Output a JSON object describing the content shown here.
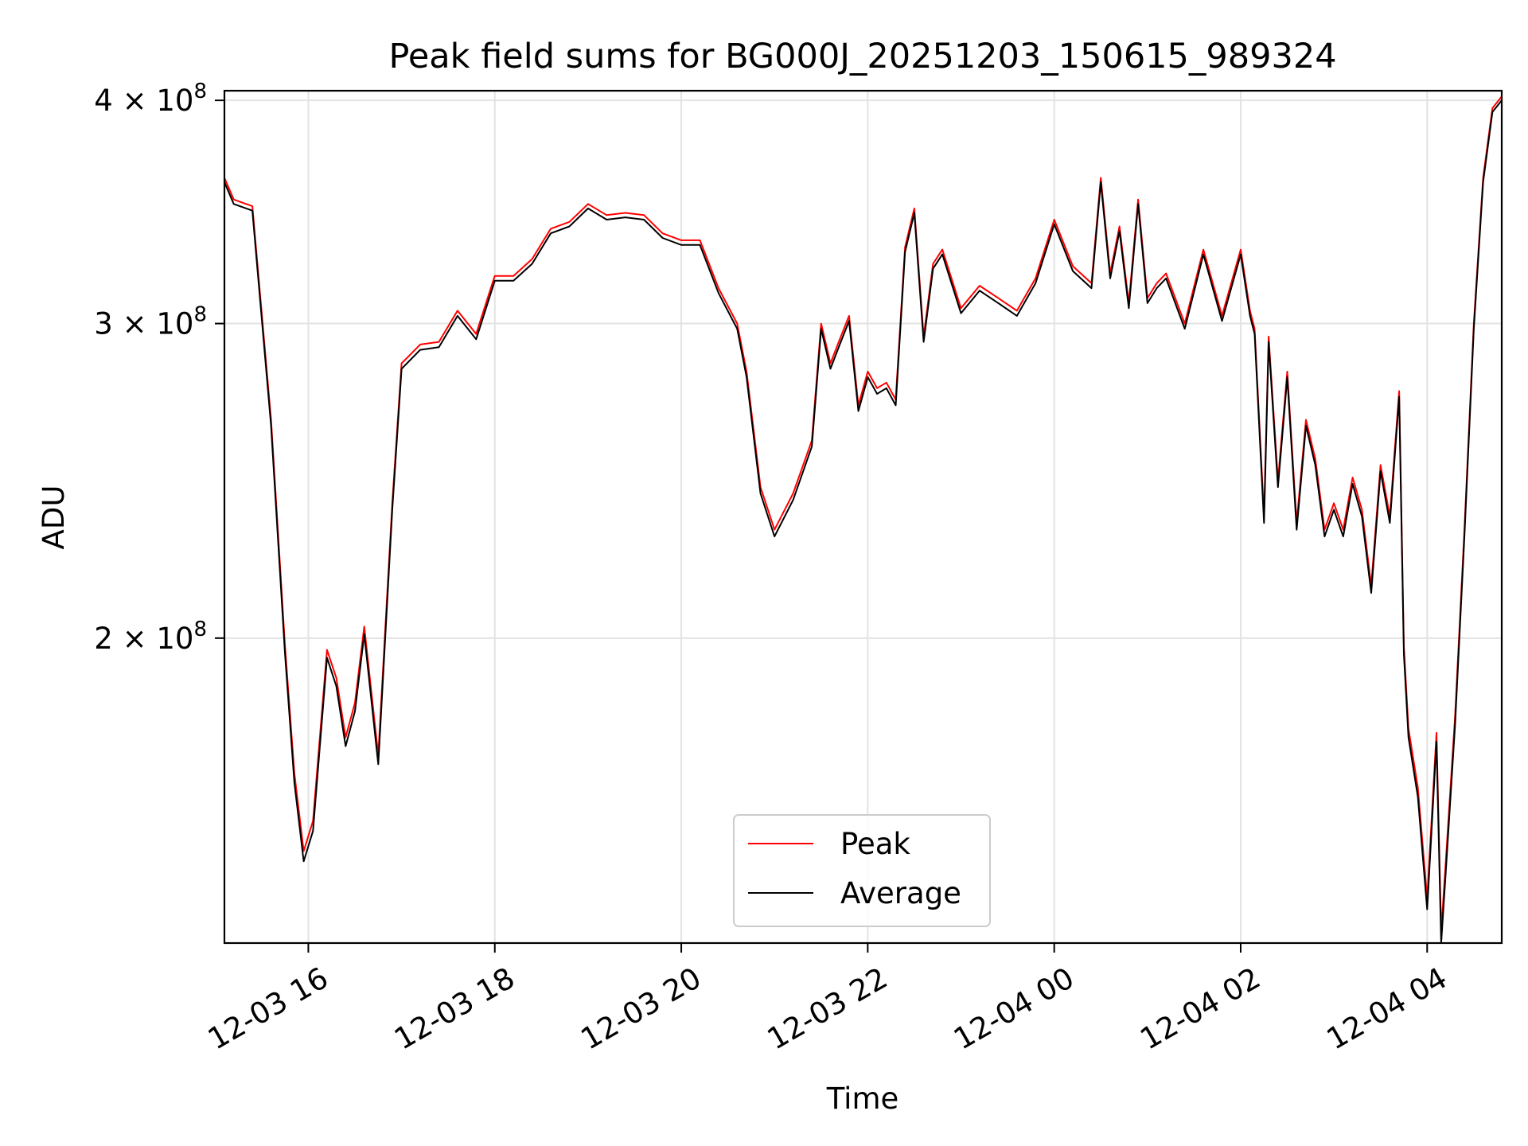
{
  "chart_data": {
    "type": "line",
    "title": "Peak field sums for BG000J_20251203_150615_989324",
    "xlabel": "Time",
    "ylabel": "ADU",
    "y_scale": "log",
    "grid": true,
    "legend_position": "lower center",
    "xlim_hours": [
      15.1,
      28.8
    ],
    "ylim": [
      135000000,
      405000000
    ],
    "x_ticks": [
      {
        "label": "12-03 16",
        "hour": 16
      },
      {
        "label": "12-03 18",
        "hour": 18
      },
      {
        "label": "12-03 20",
        "hour": 20
      },
      {
        "label": "12-03 22",
        "hour": 22
      },
      {
        "label": "12-04 00",
        "hour": 24
      },
      {
        "label": "12-04 02",
        "hour": 26
      },
      {
        "label": "12-04 04",
        "hour": 28
      }
    ],
    "y_ticks": [
      {
        "value": 200000000,
        "mant": "2",
        "exp": "8"
      },
      {
        "value": 300000000,
        "mant": "3",
        "exp": "8"
      },
      {
        "value": 400000000,
        "mant": "4",
        "exp": "8"
      }
    ],
    "x_hours": [
      15.1,
      15.2,
      15.4,
      15.6,
      15.75,
      15.85,
      15.95,
      16.05,
      16.2,
      16.3,
      16.4,
      16.5,
      16.6,
      16.75,
      16.9,
      17.0,
      17.2,
      17.4,
      17.6,
      17.8,
      18.0,
      18.2,
      18.4,
      18.6,
      18.8,
      19.0,
      19.2,
      19.4,
      19.6,
      19.8,
      20.0,
      20.2,
      20.4,
      20.6,
      20.7,
      20.85,
      21.0,
      21.2,
      21.4,
      21.5,
      21.6,
      21.7,
      21.8,
      21.9,
      22.0,
      22.1,
      22.2,
      22.3,
      22.4,
      22.5,
      22.6,
      22.7,
      22.8,
      23.0,
      23.2,
      23.4,
      23.6,
      23.8,
      24.0,
      24.2,
      24.4,
      24.5,
      24.6,
      24.7,
      24.8,
      24.9,
      25.0,
      25.1,
      25.2,
      25.4,
      25.6,
      25.8,
      26.0,
      26.1,
      26.15,
      26.25,
      26.3,
      26.4,
      26.5,
      26.6,
      26.7,
      26.8,
      26.9,
      27.0,
      27.1,
      27.2,
      27.3,
      27.4,
      27.5,
      27.6,
      27.7,
      27.75,
      27.8,
      27.9,
      28.0,
      28.1,
      28.15,
      28.2,
      28.3,
      28.4,
      28.5,
      28.6,
      28.7,
      28.8
    ],
    "series": [
      {
        "name": "Peak",
        "color": "#ff0000",
        "values": [
          362,
          352,
          349,
          265,
          198,
          168,
          152,
          158,
          197,
          190,
          176,
          184,
          203,
          172,
          238,
          285,
          292,
          293,
          305,
          296,
          319,
          319,
          326,
          339,
          342,
          350,
          345,
          346,
          345,
          337,
          334,
          334,
          314,
          300,
          282,
          243,
          230,
          241,
          258,
          300,
          285,
          294,
          303,
          270,
          282,
          276,
          278,
          272,
          331,
          348,
          295,
          324,
          330,
          306,
          315,
          310,
          305,
          318,
          343,
          323,
          316,
          362,
          320,
          340,
          308,
          352,
          310,
          316,
          320,
          300,
          330,
          303,
          330,
          305,
          298,
          234,
          295,
          245,
          282,
          232,
          265,
          252,
          230,
          238,
          230,
          246,
          236,
          214,
          250,
          234,
          275,
          198,
          178,
          165,
          143,
          177,
          137,
          150,
          181,
          230,
          300,
          362,
          396,
          402
        ]
      },
      {
        "name": "Average",
        "color": "#000000",
        "values": [
          360,
          350,
          347,
          263,
          196,
          166,
          150,
          156,
          195,
          188,
          174,
          182,
          201,
          170,
          236,
          283,
          290,
          291,
          303,
          294,
          317,
          317,
          324,
          337,
          340,
          348,
          343,
          344,
          343,
          335,
          332,
          332,
          312,
          298,
          280,
          241,
          228,
          239,
          256,
          298,
          283,
          292,
          301,
          268,
          280,
          274,
          276,
          270,
          329,
          346,
          293,
          322,
          328,
          304,
          313,
          308,
          303,
          316,
          341,
          321,
          314,
          360,
          318,
          338,
          306,
          350,
          308,
          314,
          318,
          298,
          328,
          301,
          328,
          303,
          296,
          232,
          293,
          243,
          280,
          230,
          263,
          250,
          228,
          236,
          228,
          244,
          234,
          212,
          248,
          232,
          273,
          196,
          176,
          163,
          141,
          175,
          135,
          148,
          179,
          228,
          298,
          360,
          394,
          400
        ]
      }
    ]
  }
}
